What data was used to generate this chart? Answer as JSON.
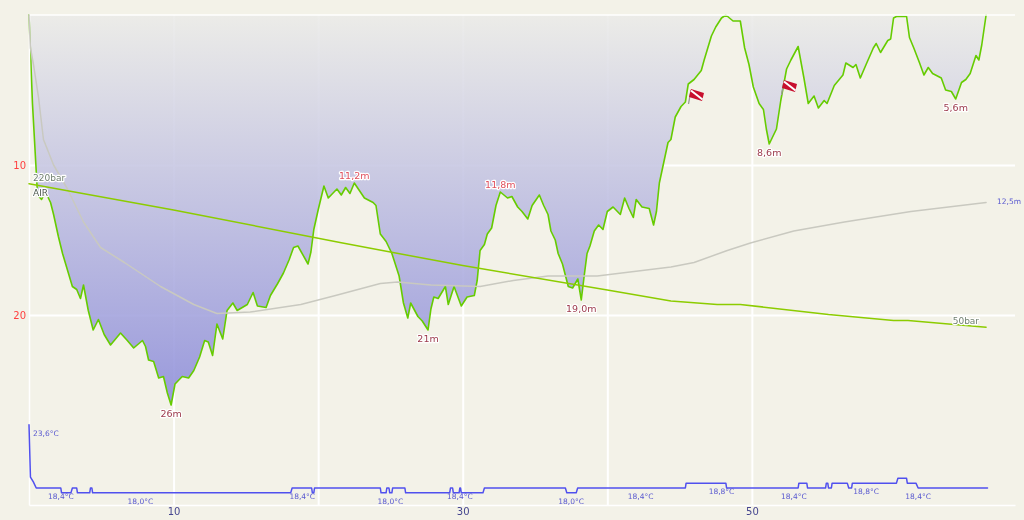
{
  "chart_data": [
    {
      "type": "area",
      "xlim": [
        0,
        68.2
      ],
      "xticks": [
        10,
        30,
        50
      ],
      "ylim": [
        27,
        0
      ],
      "yticks": [
        10,
        20
      ],
      "y2lim": [
        -60,
        420
      ],
      "grid": true,
      "tick_labels": "y",
      "series": [
        {
          "color": "#66cc00",
          "x": [
            0,
            0.24,
            0.59,
            0.87,
            1.14,
            1.49,
            1.7,
            2.04,
            2.32,
            3.0,
            3.3,
            3.56,
            3.77,
            4.1,
            4.44,
            4.8,
            5.2,
            5.64,
            6.33,
            6.8,
            7.24,
            7.85,
            8.06,
            8.27,
            8.62,
            8.97,
            9.3,
            9.57,
            9.83,
            10.1,
            10.6,
            11.04,
            11.4,
            11.8,
            12.15,
            12.4,
            12.7,
            13.0,
            13.4,
            13.7,
            14.1,
            14.4,
            15.1,
            15.5,
            15.8,
            16.4,
            16.7,
            17.2,
            17.6,
            18.0,
            18.3,
            18.6,
            19.3,
            19.5,
            19.7,
            20.0,
            20.4,
            20.7,
            21.3,
            21.6,
            21.9,
            22.2,
            22.5,
            23.2,
            23.8,
            24.0,
            24.3,
            24.7,
            25.1,
            25.6,
            25.9,
            26.2,
            26.4,
            26.9,
            27.2,
            27.6,
            27.8,
            28.0,
            28.3,
            28.8,
            29.0,
            29.4,
            29.9,
            30.3,
            30.8,
            31.0,
            31.2,
            31.5,
            31.7,
            32.0,
            32.3,
            32.6,
            33.1,
            33.4,
            33.8,
            34.1,
            34.5,
            34.8,
            35.3,
            35.6,
            35.9,
            36.1,
            36.4,
            36.6,
            36.9,
            37.3,
            37.6,
            37.96,
            38.2,
            38.4,
            38.6,
            38.8,
            39.1,
            39.4,
            39.7,
            40.0,
            40.4,
            40.9,
            41.2,
            41.5,
            41.8,
            42.0,
            42.4,
            42.9,
            43.2,
            43.4,
            43.6,
            43.8,
            44.2,
            44.4,
            44.7,
            45.1,
            45.4,
            45.6,
            46.0,
            46.5,
            46.7,
            47.2,
            47.5,
            47.9,
            48.2,
            48.7,
            49.2,
            49.5,
            49.8,
            50.1,
            50.5,
            50.8,
            51.0,
            51.2,
            51.7,
            52.0,
            52.4,
            52.7,
            53.2,
            53.6,
            53.9,
            54.3,
            54.6,
            55.0,
            55.2,
            55.7,
            56.3,
            56.5,
            57.0,
            57.2,
            57.5,
            57.9,
            58.4,
            58.6,
            58.9,
            59.4,
            59.6,
            59.8,
            60.0,
            60.7,
            60.9,
            61.2,
            61.6,
            61.9,
            62.2,
            62.5,
            63.1,
            63.4,
            63.8,
            64.1,
            64.5,
            64.8,
            65.1,
            65.5,
            65.7,
            65.9,
            66.2
          ],
          "values": [
            0,
            5.9,
            12.0,
            12.3,
            11.8,
            12.5,
            13.3,
            14.8,
            15.9,
            18.1,
            18.3,
            18.9,
            18.0,
            19.7,
            21.0,
            20.3,
            21.3,
            22.0,
            21.2,
            21.7,
            22.2,
            21.7,
            22.1,
            23.0,
            23.1,
            24.2,
            24.1,
            25.2,
            26,
            24.6,
            24.1,
            24.2,
            23.7,
            22.8,
            21.7,
            21.8,
            22.7,
            20.6,
            21.6,
            19.7,
            19.2,
            19.7,
            19.3,
            18.5,
            19.4,
            19.5,
            18.7,
            17.9,
            17.2,
            16.3,
            15.5,
            15.4,
            16.6,
            15.8,
            14.3,
            13.0,
            11.4,
            12.2,
            11.6,
            12.0,
            11.5,
            11.9,
            11.2,
            12.2,
            12.5,
            12.7,
            14.6,
            15.1,
            15.9,
            17.4,
            19.2,
            20.2,
            19.2,
            20.1,
            20.4,
            21,
            19.6,
            18.8,
            18.9,
            18.1,
            19.3,
            18.1,
            19.4,
            18.8,
            18.7,
            17.7,
            15.7,
            15.3,
            14.6,
            14.2,
            12.7,
            11.8,
            12.2,
            12.1,
            12.8,
            13.1,
            13.6,
            12.7,
            12.0,
            12.7,
            13.3,
            14.4,
            15.0,
            15.9,
            16.6,
            18.1,
            18.2,
            17.6,
            19.0,
            17.4,
            15.9,
            15.4,
            14.4,
            14.0,
            14.3,
            13.1,
            12.8,
            13.3,
            12.2,
            12.9,
            13.5,
            12.3,
            12.8,
            12.9,
            14.0,
            13.1,
            11.2,
            10.3,
            8.5,
            8.3,
            6.8,
            6.1,
            5.8,
            4.6,
            4.3,
            3.7,
            3.0,
            1.4,
            0.8,
            0.2,
            0,
            0.4,
            0.4,
            2.2,
            3.3,
            4.8,
            5.9,
            6.3,
            7.6,
            8.6,
            7.6,
            5.7,
            3.6,
            3.0,
            2.1,
            4.2,
            5.9,
            5.4,
            6.2,
            5.7,
            5.9,
            4.7,
            4.0,
            3.2,
            3.5,
            3.3,
            4.2,
            3.3,
            2.2,
            1.9,
            2.5,
            1.7,
            1.6,
            0.2,
            0.1,
            0.1,
            1.5,
            2.2,
            3.2,
            4.0,
            3.5,
            3.9,
            4.2,
            5.0,
            5.1,
            5.6,
            4.5,
            4.3,
            3.9,
            2.7,
            3.0,
            2.0,
            0
          ],
          "value_labels": [
            null,
            null,
            null,
            null,
            null,
            null,
            null,
            null,
            null,
            null,
            null,
            null,
            null,
            null,
            null,
            null,
            null,
            null,
            null,
            null,
            null,
            null,
            null,
            null,
            null,
            null,
            null,
            null,
            "26m",
            null,
            null,
            null,
            null,
            null,
            null,
            null,
            null,
            null,
            null,
            null,
            null,
            null,
            null,
            null,
            null,
            null,
            null,
            null,
            null,
            null,
            null,
            null,
            null,
            null,
            null,
            null,
            null,
            null,
            null,
            null,
            null,
            null,
            "11,2m",
            null,
            null,
            null,
            null,
            null,
            null,
            null,
            null,
            null,
            null,
            null,
            null,
            "21m",
            null,
            null,
            null,
            null,
            null,
            null,
            null,
            null,
            null,
            null,
            null,
            null,
            null,
            null,
            null,
            "11,8m",
            null,
            null,
            null,
            null,
            null,
            null,
            null,
            null,
            null,
            null,
            null,
            null,
            null,
            null,
            null,
            null,
            "19,0m",
            null,
            null,
            null,
            null,
            null,
            null,
            null,
            null,
            null,
            null,
            null,
            null,
            null,
            null,
            null,
            null,
            null,
            null,
            null,
            null,
            null,
            null,
            null,
            null,
            null,
            null,
            null,
            null,
            null,
            null,
            null,
            null,
            null,
            null,
            null,
            null,
            null,
            null,
            null,
            null,
            "8,6m",
            null,
            null,
            null,
            null,
            null,
            null,
            null,
            null,
            null,
            null,
            null,
            null,
            null,
            null,
            null,
            null,
            null,
            null,
            null,
            null,
            null,
            null,
            null,
            null,
            null,
            null,
            null,
            null,
            null,
            null,
            null,
            null,
            null,
            null,
            null,
            "5,6m",
            null,
            null,
            null,
            null,
            null,
            null,
            null
          ]
        },
        {
          "type": "line",
          "color": "#c9c9c0",
          "x": [
            0,
            0.1,
            0.31,
            0.66,
            1.0,
            1.7,
            2.66,
            3.77,
            4.95,
            6.6,
            9.1,
            11.4,
            13.0,
            15.3,
            18.8,
            21.2,
            24.3,
            25.5,
            27.8,
            31.2,
            33.5,
            35.9,
            39.3,
            44.4,
            46.0,
            48.3,
            49.9,
            52.9,
            56.4,
            61.0,
            66.2
          ],
          "values": [
            0,
            2.2,
            3.3,
            5.5,
            8.3,
            10.0,
            11.6,
            13.8,
            15.5,
            16.5,
            18.1,
            19.3,
            19.9,
            19.8,
            19.3,
            18.7,
            17.9,
            17.8,
            18.0,
            18.1,
            17.7,
            17.4,
            17.4,
            16.8,
            16.5,
            15.7,
            15.2,
            14.4,
            13.8,
            13.1,
            12.5
          ],
          "value_labels": [
            null,
            null,
            null,
            null,
            null,
            null,
            null,
            null,
            null,
            null,
            null,
            null,
            null,
            null,
            null,
            null,
            null,
            null,
            null,
            null,
            null,
            null,
            null,
            null,
            null,
            null,
            null,
            null,
            null,
            null,
            "12,5m"
          ]
        },
        {
          "type": "line",
          "axis": "y2",
          "color": "#8ccc00",
          "x": [
            0,
            10,
            21.6,
            30,
            40,
            44.4,
            47.6,
            49.2,
            55.3,
            59.8,
            60.8,
            66.2
          ],
          "values": [
            220,
            189,
            150,
            123,
            94,
            81,
            77,
            77,
            65,
            58,
            58,
            50
          ],
          "value_labels": [
            "220bar",
            null,
            null,
            null,
            null,
            null,
            null,
            null,
            null,
            null,
            null,
            "50bar"
          ]
        }
      ],
      "annotations": [
        "AIR"
      ]
    },
    {
      "type": "line",
      "xlim": [
        0,
        68.2
      ],
      "xticks": [
        10,
        30,
        50
      ],
      "ylim": [
        17,
        24
      ],
      "grid": "x",
      "tick_labels": "x",
      "series": [
        {
          "color": "#5050ee",
          "x": [
            0,
            0.1,
            0.3,
            0.5,
            2.2,
            2.25,
            2.9,
            3.0,
            3.3,
            3.35,
            4.2,
            4.25,
            4.35,
            4.4,
            7.7,
            18.1,
            18.2,
            18.9,
            19.55,
            19.6,
            19.7,
            19.75,
            24.3,
            24.35,
            24.7,
            24.75,
            24.9,
            24.95,
            25.0,
            25.1,
            25.15,
            26.0,
            26.05,
            29.1,
            29.15,
            29.3,
            29.35,
            29.75,
            29.8,
            29.85,
            29.9,
            31.4,
            31.5,
            37.1,
            37.2,
            37.5,
            37.85,
            37.95,
            42.3,
            45.4,
            45.45,
            47.9,
            48.2,
            48.25,
            52.9,
            53.2,
            53.25,
            53.8,
            53.85,
            55.1,
            55.15,
            55.25,
            55.3,
            55.5,
            55.55,
            56.6,
            56.7,
            56.9,
            56.95,
            57.9,
            60.0,
            60.1,
            60.7,
            60.75,
            61.35,
            61.5,
            66.3
          ],
          "values": [
            23.6,
            19.3,
            18.9,
            18.4,
            18.4,
            18.0,
            18.0,
            18.4,
            18.4,
            18.0,
            18.0,
            18.4,
            18.4,
            18.0,
            18.0,
            18.0,
            18.4,
            18.4,
            18.4,
            18.0,
            18.0,
            18.4,
            18.4,
            18.0,
            18.0,
            18.4,
            18.4,
            18.0,
            18.0,
            18.0,
            18.4,
            18.4,
            18.0,
            18.0,
            18.4,
            18.4,
            18.0,
            18.0,
            18.4,
            18.4,
            18.0,
            18.0,
            18.4,
            18.4,
            18.0,
            18.0,
            18.0,
            18.4,
            18.4,
            18.4,
            18.8,
            18.8,
            18.8,
            18.4,
            18.4,
            18.4,
            18.8,
            18.8,
            18.4,
            18.4,
            18.8,
            18.8,
            18.4,
            18.4,
            18.8,
            18.8,
            18.4,
            18.4,
            18.8,
            18.8,
            18.8,
            19.2,
            19.2,
            18.8,
            18.8,
            18.4,
            18.4
          ],
          "value_labels": [
            "23,6°C",
            null,
            null,
            null,
            "18,4°C",
            null,
            null,
            null,
            null,
            null,
            null,
            null,
            null,
            null,
            "18,0°C",
            null,
            null,
            "18,4°C",
            null,
            null,
            null,
            null,
            null,
            null,
            null,
            null,
            null,
            null,
            "18,0°C",
            null,
            null,
            null,
            null,
            null,
            null,
            null,
            null,
            null,
            "18,4°C",
            null,
            null,
            null,
            null,
            null,
            null,
            "18,0°C",
            null,
            null,
            "18,4°C",
            null,
            null,
            "18,8°C",
            null,
            null,
            "18,4°C",
            null,
            null,
            null,
            null,
            null,
            null,
            null,
            null,
            null,
            null,
            null,
            null,
            null,
            null,
            "18,8°C",
            null,
            null,
            null,
            null,
            null,
            "18,4°C",
            null
          ]
        }
      ]
    }
  ]
}
